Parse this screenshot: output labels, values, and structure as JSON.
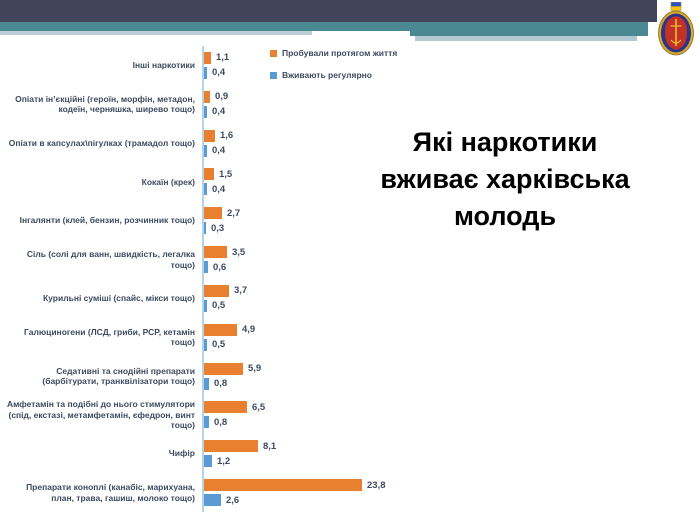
{
  "slide": {
    "title": "Які наркотики вживає харківська молодь"
  },
  "legend": {
    "items": [
      {
        "label": "Пробували протягом життя",
        "color": "#e8802f"
      },
      {
        "label": "Вживають регулярно",
        "color": "#5b9bd5"
      }
    ]
  },
  "emblem": {
    "name": "university-crest"
  },
  "chart_data": {
    "type": "bar",
    "orientation": "horizontal",
    "title": "Які наркотики вживає харківська молодь",
    "legend_position": "top-right-of-bars",
    "grid": false,
    "xlim": [
      0,
      25
    ],
    "categories": [
      "Інші наркотики",
      "Опіати ін’єкційні (героїн, морфін, метадон, кодеїн, черняшка, ширево тощо)",
      "Опіати в капсулах\\пігулках (трамадол тощо)",
      "Кокаїн (крек)",
      "Інгалянти (клей, бензин, розчинник тощо)",
      "Сіль (солі для ванн, швидкість, легалка тощо)",
      "Курильні суміші (спайс, мікси тощо)",
      "Галюциногени (ЛСД, гриби, РСР, кетамін тощо)",
      "Седативні та снодійні препарати (барбітурати, транквілізатори тощо)",
      "Амфетамін та подібні до нього стимулятори (спід, екстазі, метамфетамін, єфедрон, винт тощо)",
      "Чифір",
      "Препарати коноплі (канабіс, марихуана, план, трава, гашиш, молоко тощо)"
    ],
    "series": [
      {
        "name": "Пробували протягом життя",
        "color": "#e8802f",
        "values": [
          1.1,
          0.9,
          1.6,
          1.5,
          2.7,
          3.5,
          3.7,
          4.9,
          5.9,
          6.5,
          8.1,
          23.8
        ],
        "labels": [
          "1,1",
          "0,9",
          "1,6",
          "1,5",
          "2,7",
          "3,5",
          "3,7",
          "4,9",
          "5,9",
          "6,5",
          "8,1",
          "23,8"
        ]
      },
      {
        "name": "Вживають регулярно",
        "color": "#5b9bd5",
        "values": [
          0.4,
          0.4,
          0.4,
          0.4,
          0.3,
          0.6,
          0.5,
          0.5,
          0.8,
          0.8,
          1.2,
          2.6
        ],
        "labels": [
          "0,4",
          "0,4",
          "0,4",
          "0,4",
          "0,3",
          "0,6",
          "0,5",
          "0,5",
          "0,8",
          "0,8",
          "1,2",
          "2,6"
        ]
      }
    ]
  }
}
